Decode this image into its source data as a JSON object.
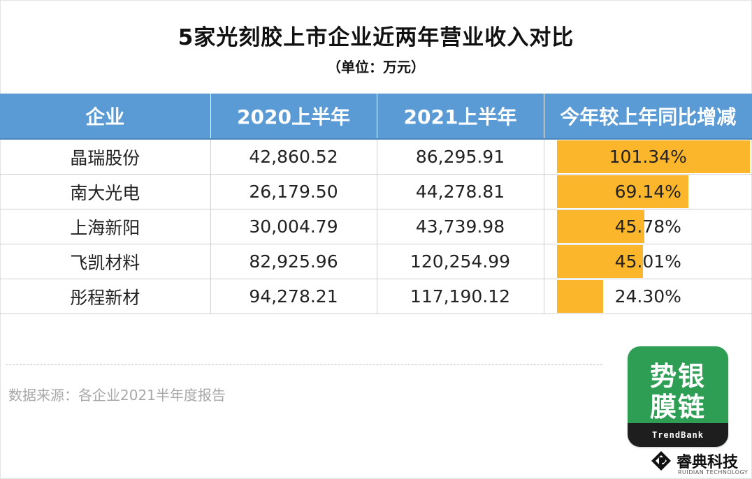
{
  "title": "5家光刻胶上市企业近两年营业收入对比",
  "subtitle": "（单位：万元）",
  "table": {
    "headers": [
      "企业",
      "2020上半年",
      "2021上半年",
      "今年较上年同比增减"
    ],
    "rows": [
      {
        "company": "晶瑞股份",
        "h2020": "42,860.52",
        "h2021": "86,295.91",
        "change": "101.34%",
        "change_value": 101.34
      },
      {
        "company": "南大光电",
        "h2020": "26,179.50",
        "h2021": "44,278.81",
        "change": "69.14%",
        "change_value": 69.14
      },
      {
        "company": "上海新阳",
        "h2020": "30,004.79",
        "h2021": "43,739.98",
        "change": "45.78%",
        "change_value": 45.78
      },
      {
        "company": "飞凯材料",
        "h2020": "82,925.96",
        "h2021": "120,254.99",
        "change": "45.01%",
        "change_value": 45.01
      },
      {
        "company": "彤程新材",
        "h2020": "94,278.21",
        "h2021": "117,190.12",
        "change": "24.30%",
        "change_value": 24.3
      }
    ],
    "bar_color": "#fbb62b",
    "header_color": "#5b9bd5"
  },
  "source": "数据来源：各企业2021半年度报告",
  "logo": {
    "line1": "势银",
    "line2": "膜链",
    "band": "TrendBank",
    "color": "#2e9e55"
  },
  "brand": {
    "name": "睿典科技",
    "english": "RUIDIAN TECHNOLOGY"
  }
}
